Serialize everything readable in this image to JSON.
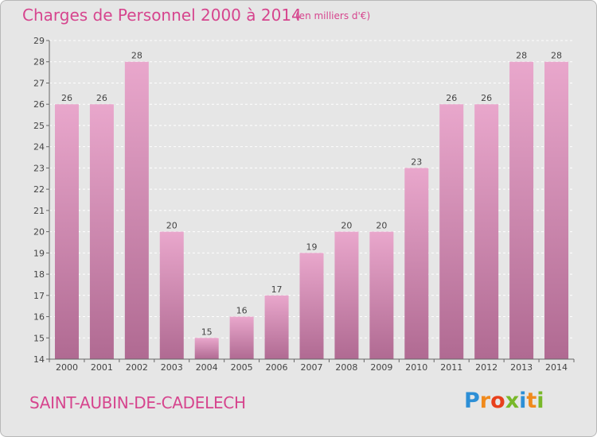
{
  "title": "Charges de Personnel 2000 à 2014",
  "subtitle": "(en milliers d'€)",
  "location": "SAINT-AUBIN-DE-CADELECH",
  "logo": {
    "letters": [
      "P",
      "r",
      "o",
      "x",
      "i",
      "t",
      "i"
    ],
    "colors": [
      "#2d8fd6",
      "#f08a1c",
      "#e8401c",
      "#79b829",
      "#2d8fd6",
      "#f08a1c",
      "#79b829"
    ]
  },
  "colors": {
    "bar_light": "#e9a7cc",
    "bar_dark": "#b06a92",
    "text": "#d6458e"
  },
  "chart_data": {
    "type": "bar",
    "categories": [
      "2000",
      "2001",
      "2002",
      "2003",
      "2004",
      "2005",
      "2006",
      "2007",
      "2008",
      "2009",
      "2010",
      "2011",
      "2012",
      "2013",
      "2014"
    ],
    "values": [
      26,
      26,
      28,
      20,
      15,
      16,
      17,
      19,
      20,
      20,
      23,
      26,
      26,
      28,
      28
    ],
    "ylim": [
      14,
      29
    ],
    "yticks": [
      14,
      15,
      16,
      17,
      18,
      19,
      20,
      21,
      22,
      23,
      24,
      25,
      26,
      27,
      28,
      29
    ],
    "grid": true,
    "data_labels": true
  }
}
